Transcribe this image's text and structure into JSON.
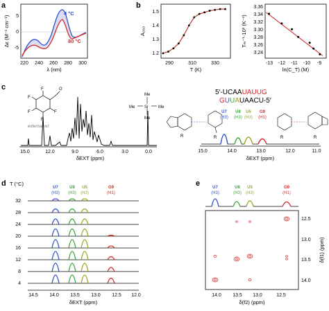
{
  "panels": {
    "a": {
      "letter": "a",
      "ylabel": "Δε (M⁻¹ cm⁻¹)",
      "xlabel": "λ (nm)",
      "yticks": [
        "5",
        "0",
        "-5"
      ],
      "xticks": [
        "220",
        "240",
        "260",
        "280",
        "300"
      ],
      "label_4C": "4 °C",
      "label_80C": "80 °C",
      "colors": {
        "cold": "#2d4fd1",
        "hot": "#d62828"
      }
    },
    "b": {
      "letter": "b",
      "left_ylabel": "A₂₆₀",
      "left_xlabel": "T (K)",
      "left_yticks": [
        "1.5",
        "1.4",
        "1.3",
        "1.2"
      ],
      "left_xticks": [
        "290",
        "310",
        "330"
      ],
      "right_ylabel": "Tₘ⁻¹·10³ (K⁻¹)",
      "right_xlabel": "ln(C_T) (M)",
      "right_yticks": [
        "3.36",
        "3.34",
        "3.32",
        "3.30",
        "3.28",
        "3.26",
        "3.24"
      ],
      "right_xticks": [
        "-13",
        "-12",
        "-11",
        "-10",
        "-9"
      ]
    },
    "c": {
      "letter": "c",
      "xlabel": "δEXT (ppm)",
      "xticks": [
        "15.0",
        "12.0",
        "9.0",
        "6.0",
        "3.0",
        "0.0"
      ],
      "external_ref": "external ref.",
      "strand_top": [
        "5′-UCAA",
        "U",
        "A",
        "U",
        "U",
        "G"
      ],
      "strand_bottom": [
        "G",
        "U",
        "U",
        "A",
        "UAACU-5′"
      ],
      "peaks": [
        {
          "name": "U7",
          "sub": "(H3)",
          "color": "#2d4fd1"
        },
        {
          "name": "U8",
          "sub": "(H3)",
          "color": "#3aa53a"
        },
        {
          "name": "U5",
          "sub": "(H3)",
          "color": "#9fa51f"
        },
        {
          "name": "G9",
          "sub": "(H1)",
          "color": "#d62828"
        }
      ],
      "inset_xticks": [
        "15.0",
        "14.0",
        "13.0",
        "12.0",
        "11.0"
      ],
      "inset_xlabel": "δEXT (ppm)"
    },
    "d": {
      "letter": "d",
      "t_header": "T (°C)",
      "temperatures": [
        "32",
        "28",
        "24",
        "20",
        "16",
        "12",
        "8",
        "4"
      ],
      "xticks": [
        "14.5",
        "14.0",
        "13.5",
        "13.0",
        "12.5",
        "12.0"
      ],
      "xlabel": "δEXT (ppm)"
    },
    "e": {
      "letter": "e",
      "xlabel": "δ(f2) (ppm)",
      "ylabel": "δ(f1) (ppm)",
      "xticks": [
        "14.0",
        "13.5",
        "13.0",
        "12.5"
      ],
      "yticks": [
        "12.5",
        "13.0",
        "13.5",
        "14.0"
      ]
    }
  },
  "chart_data": [
    {
      "type": "line",
      "panel": "b-left",
      "xlabel": "T (K)",
      "ylabel": "A260",
      "xlim": [
        283,
        350
      ],
      "ylim": [
        1.17,
        1.5
      ],
      "series": [
        {
          "x": [
            285,
            290,
            295,
            300,
            305,
            310,
            315,
            320,
            325,
            330,
            335,
            340,
            345
          ],
          "y": [
            1.2,
            1.21,
            1.23,
            1.26,
            1.31,
            1.37,
            1.42,
            1.44,
            1.45,
            1.46,
            1.465,
            1.47,
            1.47
          ]
        }
      ]
    },
    {
      "type": "scatter",
      "panel": "b-right",
      "xlabel": "ln(CT) (M)",
      "ylabel": "TM-1·10^3 (K-1)",
      "xlim": [
        -13.5,
        -8.7
      ],
      "ylim": [
        3.23,
        3.37
      ],
      "series": [
        {
          "x": [
            -13.2,
            -12.2,
            -11.4,
            -10.9,
            -10.0,
            -9.7,
            -9.2
          ],
          "y": [
            3.345,
            3.32,
            3.305,
            3.285,
            3.27,
            3.255,
            3.24
          ]
        }
      ]
    }
  ]
}
